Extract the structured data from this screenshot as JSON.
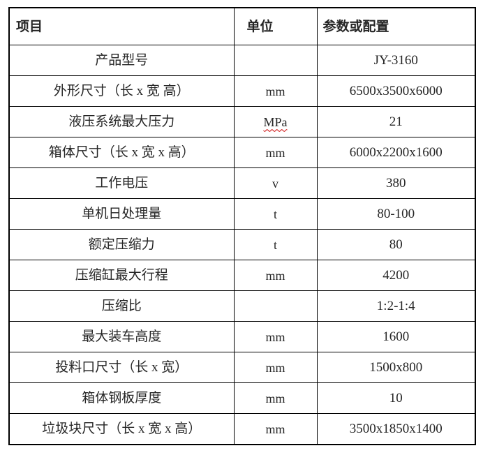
{
  "table": {
    "columns": [
      {
        "key": "item",
        "label": "项目"
      },
      {
        "key": "unit",
        "label": "单位"
      },
      {
        "key": "value",
        "label": "参数或配置"
      }
    ],
    "rows": [
      {
        "item": "产品型号",
        "unit": "",
        "value": "JY-3160"
      },
      {
        "item": "外形尺寸（长 x 宽 高）",
        "unit": "mm",
        "value": "6500x3500x6000"
      },
      {
        "item": "液压系统最大压力",
        "unit": "MPa",
        "value": "21",
        "unit_spellcheck": true
      },
      {
        "item": "箱体尺寸（长 x 宽 x 高）",
        "unit": "mm",
        "value": "6000x2200x1600"
      },
      {
        "item": "工作电压",
        "unit": "v",
        "value": "380"
      },
      {
        "item": "单机日处理量",
        "unit": "t",
        "value": "80-100"
      },
      {
        "item": "额定压缩力",
        "unit": "t",
        "value": "80"
      },
      {
        "item": "压缩缸最大行程",
        "unit": "mm",
        "value": "4200"
      },
      {
        "item": "压缩比",
        "unit": "",
        "value": "1:2-1:4"
      },
      {
        "item": "最大装车高度",
        "unit": "mm",
        "value": "1600"
      },
      {
        "item": "投料口尺寸（长 x 宽）",
        "unit": "mm",
        "value": "1500x800"
      },
      {
        "item": "箱体钢板厚度",
        "unit": "mm",
        "value": "10"
      },
      {
        "item": "垃圾块尺寸（长 x 宽 x 高）",
        "unit": "mm",
        "value": "3500x1850x1400"
      }
    ],
    "style": {
      "border_color": "#000000",
      "text_color": "#262626",
      "background_color": "#ffffff",
      "spellcheck_underline_color": "#cc0000",
      "header_bold": true
    }
  }
}
